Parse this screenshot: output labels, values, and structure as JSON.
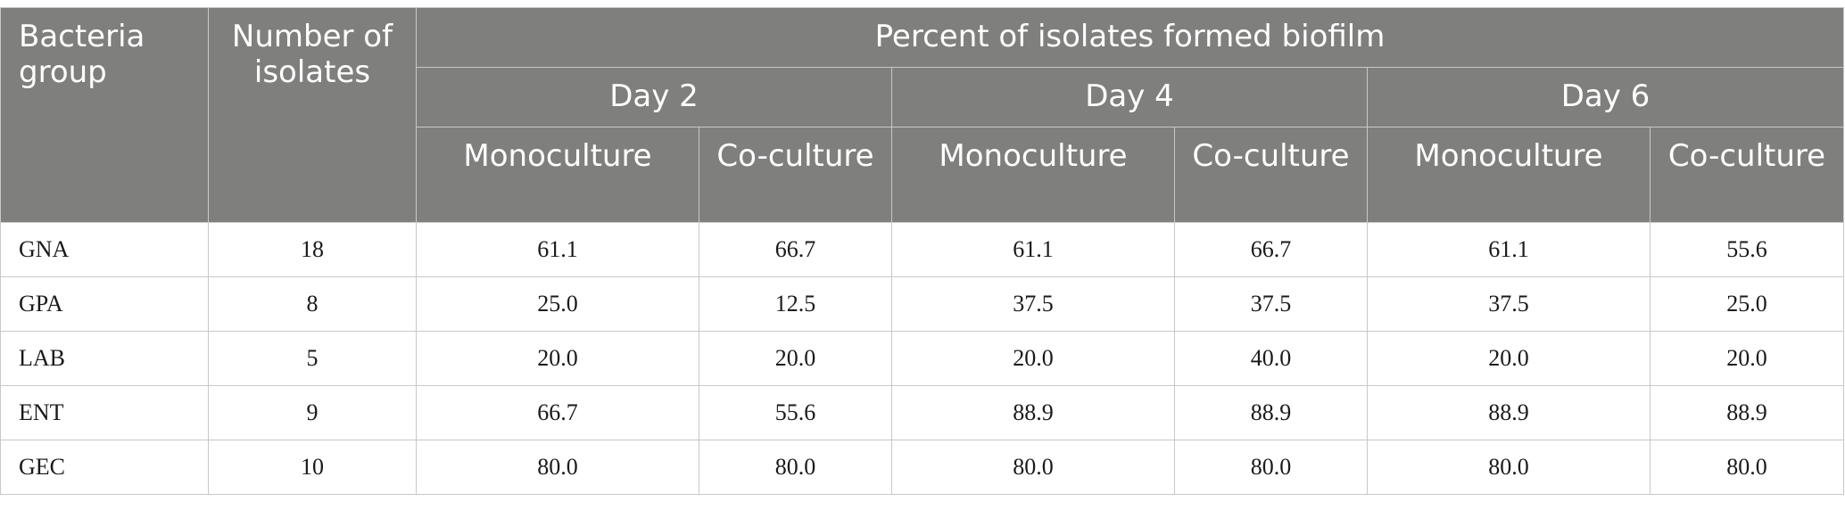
{
  "header": {
    "bacteria_group": "Bacteria group",
    "number_of_isolates": "Number of isolates",
    "percent_biofilm": "Percent of isolates formed biofilm",
    "days": [
      "Day 2",
      "Day 4",
      "Day 6"
    ],
    "monoculture": "Monoculture",
    "coculture": "Co-culture"
  },
  "rows": [
    {
      "group": "GNA",
      "n": "18",
      "values": [
        "61.1",
        "66.7",
        "61.1",
        "66.7",
        "61.1",
        "55.6"
      ]
    },
    {
      "group": "GPA",
      "n": "8",
      "values": [
        "25.0",
        "12.5",
        "37.5",
        "37.5",
        "37.5",
        "25.0"
      ]
    },
    {
      "group": "LAB",
      "n": "5",
      "values": [
        "20.0",
        "20.0",
        "20.0",
        "40.0",
        "20.0",
        "20.0"
      ]
    },
    {
      "group": "ENT",
      "n": "9",
      "values": [
        "66.7",
        "55.6",
        "88.9",
        "88.9",
        "88.9",
        "88.9"
      ]
    },
    {
      "group": "GEC",
      "n": "10",
      "values": [
        "80.0",
        "80.0",
        "80.0",
        "80.0",
        "80.0",
        "80.0"
      ]
    }
  ]
}
